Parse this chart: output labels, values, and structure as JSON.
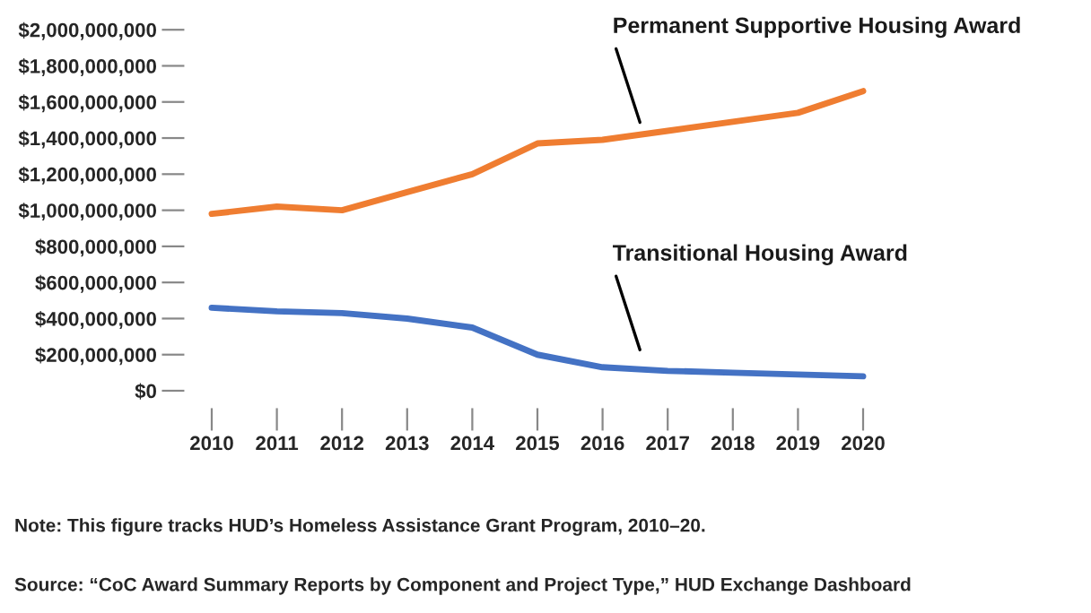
{
  "chart_data": {
    "type": "line",
    "x": [
      2010,
      2011,
      2012,
      2013,
      2014,
      2015,
      2016,
      2017,
      2018,
      2019,
      2020
    ],
    "series": [
      {
        "name": "Permanent Supportive Housing Award",
        "color": "#ef7d31",
        "values": [
          980000000,
          1020000000,
          1000000000,
          1100000000,
          1200000000,
          1370000000,
          1390000000,
          1440000000,
          1490000000,
          1540000000,
          1660000000
        ]
      },
      {
        "name": "Transitional Housing Award",
        "color": "#4472c4",
        "values": [
          460000000,
          440000000,
          430000000,
          400000000,
          350000000,
          200000000,
          130000000,
          110000000,
          100000000,
          90000000,
          80000000
        ]
      }
    ],
    "xlim": [
      2010,
      2020
    ],
    "xticks": [
      2010,
      2011,
      2012,
      2013,
      2014,
      2015,
      2016,
      2017,
      2018,
      2019,
      2020
    ],
    "ylim": [
      0,
      2000000000
    ],
    "yticks": [
      {
        "value": 0,
        "label": "$0"
      },
      {
        "value": 200000000,
        "label": "$200,000,000"
      },
      {
        "value": 400000000,
        "label": "$400,000,000"
      },
      {
        "value": 600000000,
        "label": "$600,000,000"
      },
      {
        "value": 800000000,
        "label": "$800,000,000"
      },
      {
        "value": 1000000000,
        "label": "$1,000,000,000"
      },
      {
        "value": 1200000000,
        "label": "$1,200,000,000"
      },
      {
        "value": 1400000000,
        "label": "$1,400,000,000"
      },
      {
        "value": 1600000000,
        "label": "$1,600,000,000"
      },
      {
        "value": 1800000000,
        "label": "$1,800,000,000"
      },
      {
        "value": 2000000000,
        "label": "$2,000,000,000"
      }
    ],
    "grid": false,
    "legend": false,
    "marker": "none",
    "line_style": "solid",
    "annotations": [
      "Note: This figure tracks HUD’s Homeless Assistance Grant Program, 2010–20.",
      "Source: “CoC Award Summary Reports by Component and Project Type,” HUD Exchange Dashboard"
    ]
  }
}
